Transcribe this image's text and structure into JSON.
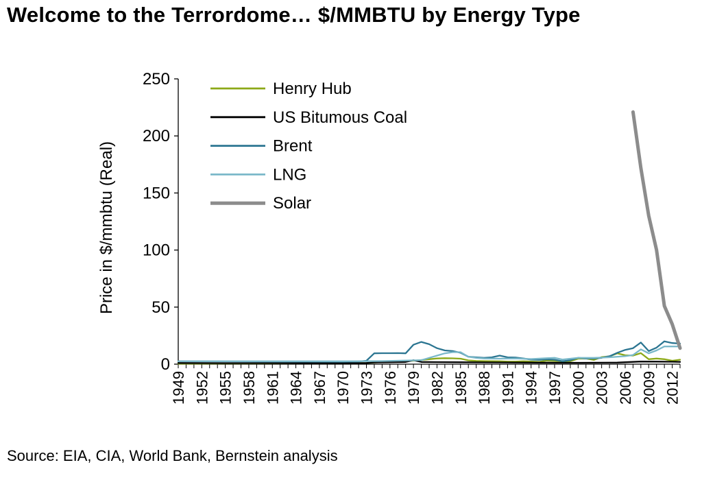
{
  "title": "Welcome to the Terrordome… $/MMBTU by Energy Type",
  "source": "Source: EIA, CIA, World Bank, Bernstein analysis",
  "chart_data": {
    "type": "line",
    "ylabel": "Price in $/mmbtu (Real)",
    "xlabel": "",
    "ylim": [
      0,
      250
    ],
    "yticks": [
      0,
      50,
      100,
      150,
      200,
      250
    ],
    "xlim": [
      1949,
      2013
    ],
    "xticks": [
      1949,
      1952,
      1955,
      1958,
      1961,
      1964,
      1967,
      1970,
      1973,
      1976,
      1979,
      1982,
      1985,
      1988,
      1991,
      1994,
      1997,
      2000,
      2003,
      2006,
      2009,
      2012
    ],
    "grid": false,
    "legend_position": "top-left",
    "series": [
      {
        "name": "Henry Hub",
        "color": "#8ca817",
        "x": [
          1949,
          1955,
          1960,
          1965,
          1970,
          1973,
          1975,
          1977,
          1979,
          1980,
          1981,
          1982,
          1983,
          1984,
          1985,
          1986,
          1987,
          1988,
          1989,
          1990,
          1991,
          1992,
          1993,
          1994,
          1995,
          1996,
          1997,
          1998,
          1999,
          2000,
          2001,
          2002,
          2003,
          2004,
          2005,
          2006,
          2007,
          2008,
          2009,
          2010,
          2011,
          2012,
          2013
        ],
        "y": [
          0.4,
          0.6,
          0.7,
          0.8,
          0.9,
          1.0,
          1.8,
          2.5,
          3.0,
          3.6,
          4.3,
          5.0,
          5.2,
          5.1,
          4.8,
          3.3,
          2.8,
          2.7,
          2.6,
          2.5,
          2.2,
          2.2,
          2.5,
          2.3,
          2.0,
          3.1,
          2.9,
          2.4,
          2.6,
          4.8,
          5.0,
          3.7,
          6.2,
          6.8,
          9.5,
          7.8,
          7.5,
          9.7,
          4.3,
          4.9,
          4.3,
          3.0,
          3.9
        ]
      },
      {
        "name": "US Bitumous Coal",
        "color": "#000000",
        "x": [
          1949,
          1955,
          1960,
          1965,
          1970,
          1973,
          1974,
          1976,
          1978,
          1979,
          1980,
          1982,
          1985,
          1990,
          1995,
          2000,
          2005,
          2008,
          2010,
          2012,
          2013
        ],
        "y": [
          1.0,
          0.9,
          0.9,
          0.8,
          0.9,
          1.0,
          1.5,
          1.7,
          1.9,
          3.4,
          1.9,
          1.8,
          1.7,
          1.5,
          1.3,
          1.2,
          1.4,
          2.3,
          2.2,
          2.1,
          2.0
        ]
      },
      {
        "name": "Brent",
        "color": "#2b7591",
        "x": [
          1949,
          1955,
          1960,
          1965,
          1970,
          1972,
          1973,
          1974,
          1975,
          1976,
          1977,
          1978,
          1979,
          1980,
          1981,
          1982,
          1983,
          1984,
          1985,
          1986,
          1987,
          1988,
          1989,
          1990,
          1991,
          1992,
          1993,
          1994,
          1995,
          1996,
          1997,
          1998,
          1999,
          2000,
          2001,
          2002,
          2003,
          2004,
          2005,
          2006,
          2007,
          2008,
          2009,
          2010,
          2011,
          2012,
          2013
        ],
        "y": [
          2.5,
          2.4,
          2.3,
          2.2,
          2.1,
          2.3,
          3.0,
          9.5,
          9.6,
          9.6,
          9.7,
          9.5,
          17.0,
          19.5,
          17.5,
          14.0,
          12.0,
          11.5,
          10.0,
          6.5,
          6.0,
          5.5,
          6.0,
          7.5,
          6.0,
          5.8,
          5.0,
          4.0,
          3.8,
          4.2,
          3.9,
          2.5,
          3.5,
          5.5,
          5.0,
          5.0,
          5.5,
          7.0,
          10.0,
          12.5,
          14.0,
          19.0,
          11.5,
          14.5,
          20.0,
          18.5,
          18.0
        ]
      },
      {
        "name": "LNG",
        "color": "#7ab8c9",
        "x": [
          1949,
          1955,
          1960,
          1965,
          1970,
          1973,
          1975,
          1980,
          1983,
          1984,
          1985,
          1986,
          1987,
          1988,
          1990,
          1992,
          1994,
          1996,
          1997,
          1998,
          2000,
          2002,
          2004,
          2006,
          2007,
          2008,
          2009,
          2010,
          2011,
          2012,
          2013
        ],
        "y": [
          2.5,
          2.5,
          2.5,
          2.5,
          2.5,
          2.6,
          2.7,
          3.5,
          9.5,
          10.5,
          10.5,
          6.5,
          5.5,
          5.0,
          4.8,
          5.0,
          4.5,
          5.2,
          5.5,
          4.0,
          5.5,
          5.5,
          6.0,
          7.0,
          8.0,
          13.0,
          9.5,
          12.0,
          15.5,
          15.5,
          15.5
        ]
      },
      {
        "name": "Solar",
        "color": "#8c8c8c",
        "x": [
          2007,
          2008,
          2009,
          2010,
          2011,
          2012,
          2013
        ],
        "y": [
          221,
          172,
          130,
          100,
          51,
          35,
          14
        ]
      }
    ]
  }
}
